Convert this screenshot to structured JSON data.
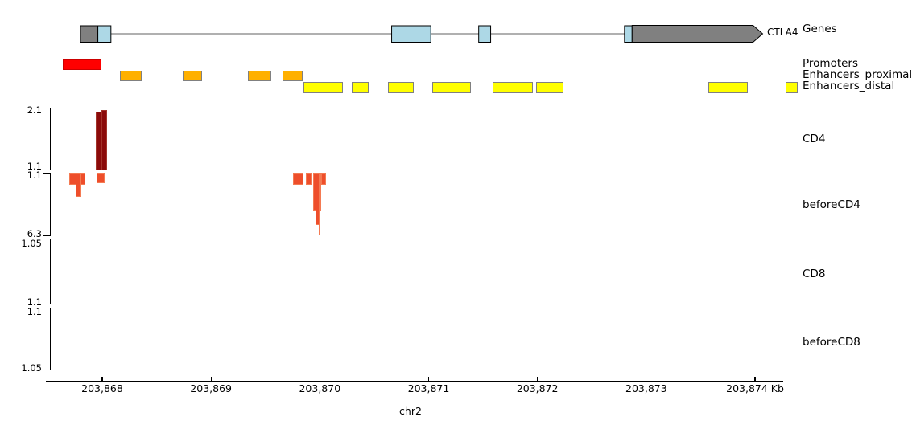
{
  "figure": {
    "track_labels": {
      "genes": "Genes",
      "promoters": "Promoters",
      "enhancers_proximal": "Enhancers_proximal",
      "enhancers_distal": "Enhancers_distal",
      "cd4": "CD4",
      "before_cd4": "beforeCD4",
      "cd8": "CD8",
      "before_cd8": "beforeCD8"
    },
    "gene_label": "CTLA4",
    "xaxis_title": "chr2"
  },
  "colors": {
    "gene_cds": "#808080",
    "gene_utr": "#add8e6",
    "gene_line": "#808080",
    "promoter_fill": "#ff0000",
    "promoter_stroke": "#cc0000",
    "enhancer_proximal_fill": "#ffb000",
    "enhancer_distal_fill": "#ffff00",
    "enhancer_stroke": "#808080",
    "cd4_signal": "#8b0a0a",
    "cd4_signal_edge": "#a2332a",
    "before_signal": "#ee4e2b",
    "before_signal_edge": "#f47a52",
    "axis": "#000000"
  },
  "chart_data": {
    "type": "genome-tracks",
    "title": "",
    "region": {
      "chromosome": "chr2",
      "start_kb": 203867.48,
      "end_kb": 203874.26,
      "unit": "Kb"
    },
    "xaxis": {
      "label": "chr2",
      "ticks": [
        {
          "kb": 203868,
          "label": "203,868"
        },
        {
          "kb": 203869,
          "label": "203,869"
        },
        {
          "kb": 203870,
          "label": "203,870"
        },
        {
          "kb": 203871,
          "label": "203,871"
        },
        {
          "kb": 203872,
          "label": "203,872"
        },
        {
          "kb": 203873,
          "label": "203,873"
        },
        {
          "kb": 203874,
          "label": "203,874 Kb"
        }
      ]
    },
    "yaxis_labels": [
      {
        "track": "CD4",
        "top": "2.1",
        "bottom": "1.1"
      },
      {
        "track": "beforeCD4",
        "top": "1.1",
        "bottom": "6.3"
      },
      {
        "track": "CD8",
        "top": "1.05",
        "bottom": "1.1"
      },
      {
        "track": "beforeCD8",
        "top": "1.1",
        "bottom": "1.05"
      }
    ],
    "tracks": [
      {
        "name": "Genes",
        "type": "gene",
        "gene_name": "CTLA4",
        "strand": "right",
        "start_kb": 203867.8,
        "end_kb": 203874.07,
        "exons": [
          {
            "s": 203867.8,
            "e": 203867.96,
            "kind": "cds"
          },
          {
            "s": 203867.96,
            "e": 203868.08,
            "kind": "utr"
          },
          {
            "s": 203870.66,
            "e": 203871.02,
            "kind": "utr"
          },
          {
            "s": 203871.46,
            "e": 203871.57,
            "kind": "utr"
          },
          {
            "s": 203872.8,
            "e": 203872.87,
            "kind": "utr"
          },
          {
            "s": 203872.87,
            "e": 203874.07,
            "kind": "cds",
            "arrow": true
          }
        ]
      },
      {
        "name": "Promoters",
        "type": "intervals",
        "fill": "#ff0000",
        "stroke": "#cc0000",
        "intervals": [
          {
            "s": 203867.64,
            "e": 203867.99
          }
        ]
      },
      {
        "name": "Enhancers_proximal",
        "type": "intervals",
        "fill": "#ffb000",
        "stroke": "#808080",
        "intervals": [
          {
            "s": 203868.16,
            "e": 203868.36
          },
          {
            "s": 203868.74,
            "e": 203868.92
          },
          {
            "s": 203869.34,
            "e": 203869.55
          },
          {
            "s": 203869.66,
            "e": 203869.84
          }
        ]
      },
      {
        "name": "Enhancers_distal",
        "type": "intervals",
        "fill": "#ffff00",
        "stroke": "#808080",
        "intervals": [
          {
            "s": 203869.85,
            "e": 203870.21
          },
          {
            "s": 203870.29,
            "e": 203870.45
          },
          {
            "s": 203870.63,
            "e": 203870.86
          },
          {
            "s": 203871.03,
            "e": 203871.39
          },
          {
            "s": 203871.59,
            "e": 203871.96
          },
          {
            "s": 203871.99,
            "e": 203872.24
          },
          {
            "s": 203873.57,
            "e": 203873.93
          },
          {
            "s": 203874.28,
            "e": 203874.39
          }
        ]
      },
      {
        "name": "CD4",
        "type": "signal",
        "orientation": "up",
        "ymin": 1.1,
        "ymax": 2.1,
        "fill": "#8b0a0a",
        "edge": "#a2332a",
        "bars": [
          {
            "s": 203867.944,
            "e": 203867.995,
            "v": 2.03
          },
          {
            "s": 203867.995,
            "e": 203868.048,
            "v": 2.06
          }
        ]
      },
      {
        "name": "beforeCD4",
        "type": "signal",
        "orientation": "down",
        "ymin": 1.1,
        "ymax": 6.3,
        "fill": "#ee4e2b",
        "edge": "#f47a52",
        "bars": [
          {
            "s": 203867.7,
            "e": 203867.845,
            "v": 2.1
          },
          {
            "s": 203867.755,
            "e": 203867.81,
            "v": 3.1
          },
          {
            "s": 203867.945,
            "e": 203868.02,
            "v": 2.0
          },
          {
            "s": 203869.753,
            "e": 203869.85,
            "v": 2.1
          },
          {
            "s": 203869.872,
            "e": 203869.923,
            "v": 2.1
          },
          {
            "s": 203869.938,
            "e": 203870.012,
            "v": 4.3
          },
          {
            "s": 203869.96,
            "e": 203870.005,
            "v": 5.4
          },
          {
            "s": 203869.99,
            "e": 203870.0,
            "v": 6.2
          },
          {
            "s": 203870.012,
            "e": 203870.055,
            "v": 2.1
          }
        ]
      },
      {
        "name": "CD8",
        "type": "signal",
        "orientation": "down",
        "ymin": 1.05,
        "ymax": 1.1,
        "fill": "#ee4e2b",
        "edge": "#f47a52",
        "bars": []
      },
      {
        "name": "beforeCD8",
        "type": "signal",
        "orientation": "up",
        "ymin": 1.05,
        "ymax": 1.1,
        "fill": "#ee4e2b",
        "edge": "#f47a52",
        "bars": []
      }
    ]
  }
}
